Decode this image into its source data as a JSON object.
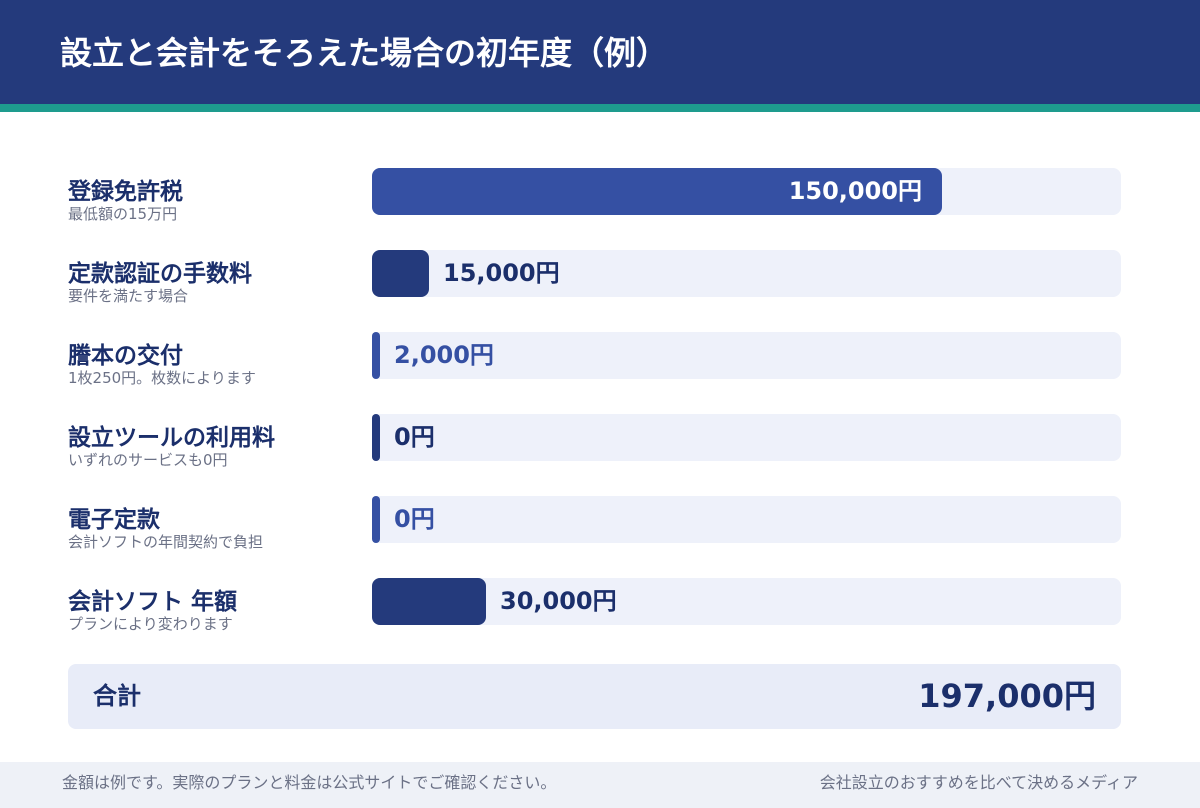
{
  "header": {
    "title": "設立と会計をそろえた場合の初年度（例）"
  },
  "colors": {
    "header_bg": "#243a7c",
    "accent_stripe": "#1e9c8e",
    "bar_primary": "#3550a3",
    "bar_dark": "#243a7c",
    "track": "#eef1fa",
    "text_dark": "#1b2f6b"
  },
  "chart_data": {
    "type": "bar",
    "orientation": "horizontal",
    "unit": "円",
    "xlim": [
      0,
      197000
    ],
    "categories": [
      "登録免許税",
      "定款認証の手数料",
      "謄本の交付",
      "設立ツールの利用料",
      "電子定款",
      "会計ソフト 年額"
    ],
    "subtitles": [
      "最低額の15万円",
      "要件を満たす場合",
      "1枚250円。枚数によります",
      "いずれのサービスも0円",
      "会計ソフトの年間契約で負担",
      "プランにより変わります"
    ],
    "values": [
      150000,
      15000,
      2000,
      0,
      0,
      30000
    ],
    "value_labels": [
      "150,000円",
      "15,000円",
      "2,000円",
      "0円",
      "0円",
      "30,000円"
    ],
    "bar_colors": [
      "#3550a3",
      "#243a7c",
      "#3550a3",
      "#243a7c",
      "#3550a3",
      "#243a7c"
    ],
    "label_colors": [
      "#ffffff",
      "#1b2f6b",
      "#3550a3",
      "#1b2f6b",
      "#3550a3",
      "#1b2f6b"
    ]
  },
  "total": {
    "label": "合計",
    "value": "197,000円"
  },
  "footer": {
    "note": "金額は例です。実際のプランと料金は公式サイトでご確認ください。",
    "brand": "会社設立のおすすめを比べて決めるメディア"
  }
}
